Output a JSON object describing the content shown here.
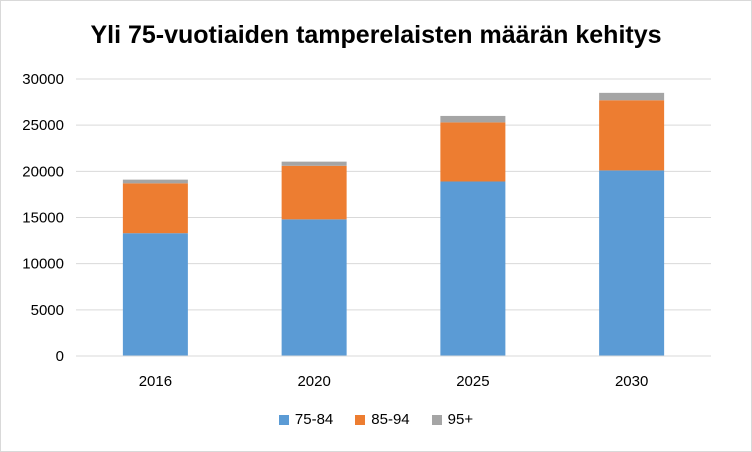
{
  "chart_data": {
    "type": "bar",
    "stacked": true,
    "title": "Yli 75-vuotiaiden tamperelaisten määrän kehitys",
    "categories": [
      "2016",
      "2020",
      "2025",
      "2030"
    ],
    "series": [
      {
        "name": "75-84",
        "color": "#5b9bd5",
        "values": [
          13300,
          14800,
          18900,
          20100
        ]
      },
      {
        "name": "85-94",
        "color": "#ed7d31",
        "values": [
          5400,
          5800,
          6400,
          7600
        ]
      },
      {
        "name": "95+",
        "color": "#a5a5a5",
        "values": [
          400,
          450,
          700,
          800
        ]
      }
    ],
    "ylim": [
      0,
      30000
    ],
    "yticks": [
      "0",
      "5000",
      "10000",
      "15000",
      "20000",
      "25000",
      "30000"
    ],
    "grid": true,
    "legend": "bottom",
    "xlabel": "",
    "ylabel": ""
  }
}
